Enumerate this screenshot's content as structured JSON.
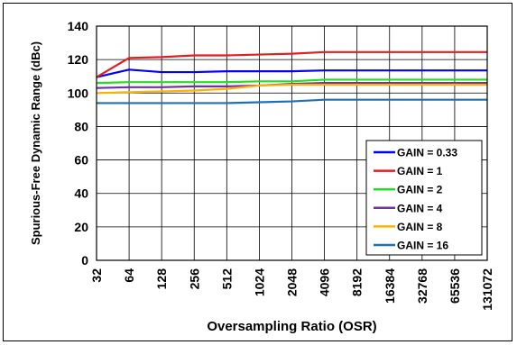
{
  "chart_data": {
    "type": "line",
    "xlabel": "Oversampling Ratio (OSR)",
    "ylabel": "Spurious-Free Dynamic Range (dBc)",
    "x": [
      "32",
      "64",
      "128",
      "256",
      "512",
      "1024",
      "2048",
      "4096",
      "8192",
      "16384",
      "32768",
      "65536",
      "131072"
    ],
    "y_ticks": [
      "0",
      "20",
      "40",
      "60",
      "80",
      "100",
      "120",
      "140"
    ],
    "ylim": [
      0,
      140
    ],
    "grid": true,
    "legend_position": "bottom-right",
    "series": [
      {
        "name": "GAIN = 0.33",
        "color": "#0000ff",
        "values": [
          109.5,
          114,
          112.5,
          112.5,
          113,
          113,
          113,
          113.5,
          113.5,
          113.5,
          113.5,
          113.5,
          113.5
        ]
      },
      {
        "name": "GAIN = 1",
        "color": "#e02020",
        "values": [
          109.5,
          121,
          121.5,
          122.5,
          122.5,
          123,
          123.5,
          124.5,
          124.5,
          124.5,
          124.5,
          124.5,
          124.5
        ]
      },
      {
        "name": "GAIN = 2",
        "color": "#20e020",
        "values": [
          106,
          106.5,
          106.5,
          106.5,
          106.5,
          107,
          107,
          108,
          108,
          108,
          108,
          108,
          108
        ]
      },
      {
        "name": "GAIN = 4",
        "color": "#7030a0",
        "values": [
          103,
          103.5,
          103.5,
          104,
          104,
          104.5,
          105.5,
          106,
          106,
          106,
          106,
          106,
          106
        ]
      },
      {
        "name": "GAIN = 8",
        "color": "#ffb000",
        "values": [
          100,
          100.5,
          101,
          101.5,
          102.5,
          104.5,
          105,
          105,
          105,
          105,
          105,
          105,
          105
        ]
      },
      {
        "name": "GAIN = 16",
        "color": "#1f6fb5",
        "values": [
          94,
          94,
          94,
          94,
          94,
          94.5,
          95,
          96,
          96,
          96,
          96,
          96,
          96
        ]
      }
    ]
  }
}
